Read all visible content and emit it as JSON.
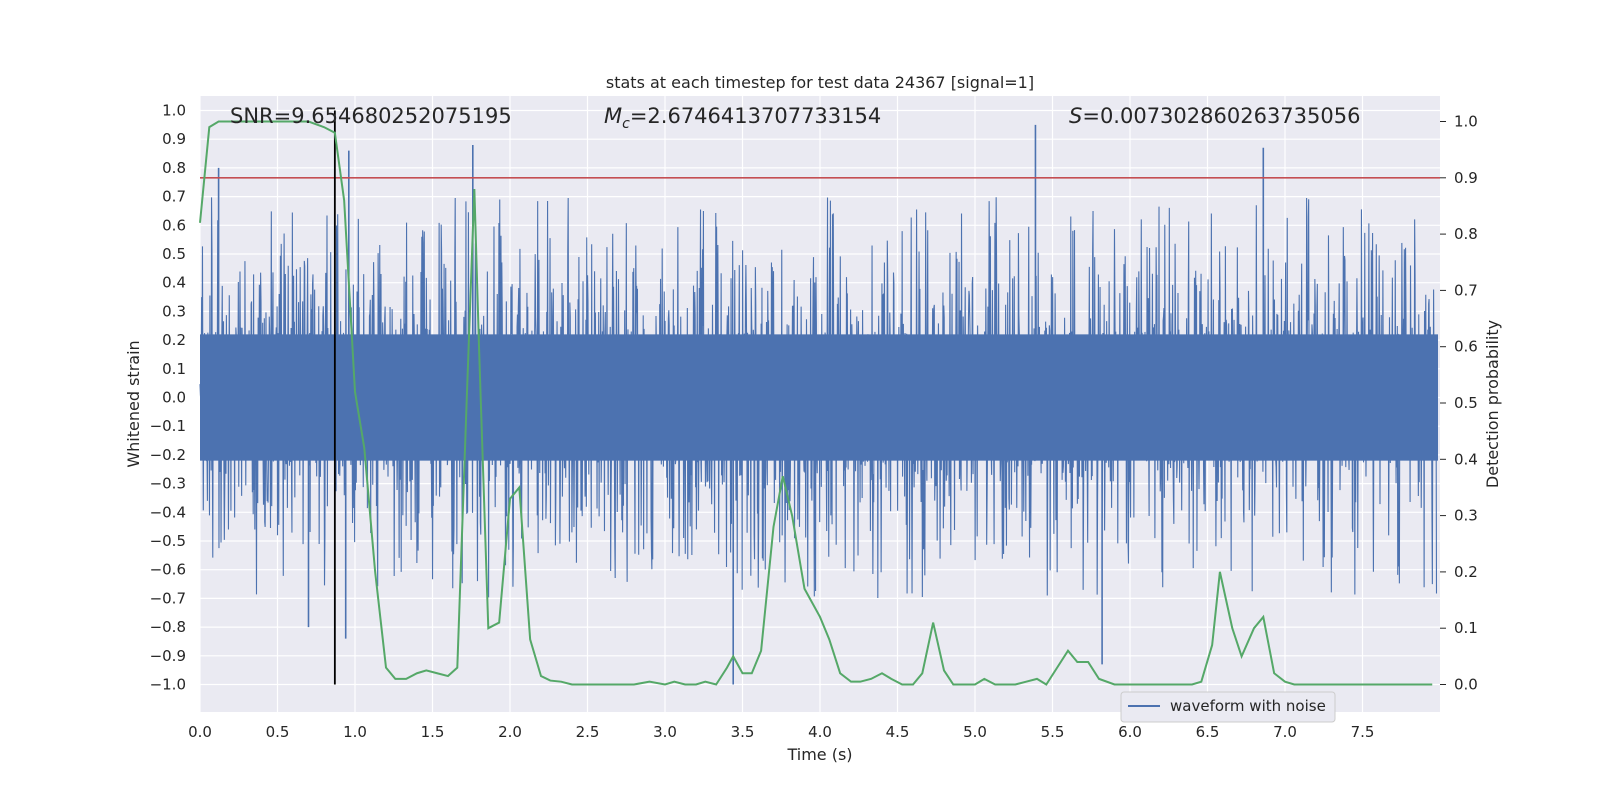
{
  "chart_data": {
    "type": "line",
    "title": "stats at each timestep for test data 24367 [signal=1]",
    "xlabel": "Time (s)",
    "ylabel": "Whitened strain",
    "ylabel_right": "Detection probability",
    "xlim": [
      0.0,
      8.0
    ],
    "ylim_left": [
      -1.1,
      1.05
    ],
    "ylim_right": [
      -0.05,
      1.05
    ],
    "x_ticks": [
      "0.0",
      "0.5",
      "1.0",
      "1.5",
      "2.0",
      "2.5",
      "3.0",
      "3.5",
      "4.0",
      "4.5",
      "5.0",
      "5.5",
      "6.0",
      "6.5",
      "7.0",
      "7.5"
    ],
    "y_left_ticks": [
      "1.0",
      "0.9",
      "0.8",
      "0.7",
      "0.6",
      "0.5",
      "0.4",
      "0.3",
      "0.2",
      "0.1",
      "0.0",
      "-0.1",
      "-0.2",
      "-0.3",
      "-0.4",
      "-0.5",
      "-0.6",
      "-0.7",
      "-0.8",
      "-0.9",
      "-1.0"
    ],
    "y_right_ticks": [
      "1.0",
      "0.9",
      "0.8",
      "0.7",
      "0.6",
      "0.5",
      "0.4",
      "0.3",
      "0.2",
      "0.1",
      "0.0"
    ],
    "annotations": {
      "snr": "SNR=9.654680252075195",
      "mc_symbol": "M",
      "mc_subscript": "c",
      "mc_value": "=2.6746413707733154",
      "s_symbol": "S",
      "s_value": "=0.007302860263735056"
    },
    "threshold": 0.9,
    "marker_time": 0.87,
    "legend_position": "lower-right",
    "grid": true,
    "series": [
      {
        "name": "waveform with noise",
        "color": "#4c72b0",
        "description_envelope_upper": 0.6,
        "description_envelope_lower": -0.6,
        "notable_peaks": [
          {
            "x": 0.12,
            "y": 0.8
          },
          {
            "x": 0.96,
            "y": 0.86
          },
          {
            "x": 1.76,
            "y": 0.88
          },
          {
            "x": 5.39,
            "y": 0.95
          },
          {
            "x": 6.86,
            "y": 0.87
          },
          {
            "x": 0.7,
            "y": -0.8
          },
          {
            "x": 0.94,
            "y": -0.84
          },
          {
            "x": 3.44,
            "y": -1.0
          },
          {
            "x": 5.82,
            "y": -0.93
          }
        ]
      },
      {
        "color": "#55a868",
        "axis": "right",
        "x": [
          0.0,
          0.06,
          0.12,
          0.2,
          0.3,
          0.5,
          0.7,
          0.8,
          0.87,
          0.93,
          1.0,
          1.06,
          1.13,
          1.2,
          1.26,
          1.33,
          1.4,
          1.46,
          1.53,
          1.6,
          1.66,
          1.72,
          1.77,
          1.8,
          1.86,
          1.93,
          2.0,
          2.06,
          2.13,
          2.2,
          2.26,
          2.33,
          2.4,
          2.5,
          2.6,
          2.7,
          2.8,
          2.9,
          3.0,
          3.06,
          3.13,
          3.2,
          3.26,
          3.33,
          3.4,
          3.44,
          3.5,
          3.56,
          3.62,
          3.7,
          3.76,
          3.82,
          3.9,
          4.0,
          4.06,
          4.13,
          4.2,
          4.26,
          4.33,
          4.4,
          4.46,
          4.53,
          4.6,
          4.66,
          4.73,
          4.8,
          4.86,
          4.93,
          5.0,
          5.06,
          5.13,
          5.2,
          5.26,
          5.33,
          5.4,
          5.46,
          5.53,
          5.6,
          5.66,
          5.73,
          5.8,
          5.9,
          6.0,
          6.1,
          6.2,
          6.3,
          6.4,
          6.46,
          6.53,
          6.58,
          6.66,
          6.72,
          6.8,
          6.86,
          6.93,
          7.0,
          7.06,
          7.13,
          7.2,
          7.4,
          7.6,
          7.8,
          7.95
        ],
        "y": [
          0.82,
          0.99,
          1.0,
          1.0,
          1.0,
          1.0,
          1.0,
          0.99,
          0.98,
          0.86,
          0.52,
          0.42,
          0.2,
          0.03,
          0.01,
          0.01,
          0.02,
          0.025,
          0.02,
          0.015,
          0.03,
          0.5,
          0.88,
          0.6,
          0.1,
          0.11,
          0.33,
          0.35,
          0.08,
          0.015,
          0.007,
          0.005,
          0.0,
          0.0,
          0.0,
          0.0,
          0.0,
          0.005,
          0.0,
          0.005,
          0.0,
          0.0,
          0.005,
          0.0,
          0.03,
          0.05,
          0.02,
          0.02,
          0.06,
          0.28,
          0.37,
          0.3,
          0.17,
          0.12,
          0.08,
          0.02,
          0.005,
          0.005,
          0.01,
          0.02,
          0.01,
          0.0,
          0.0,
          0.02,
          0.11,
          0.025,
          0.0,
          0.0,
          0.0,
          0.01,
          0.0,
          0.0,
          0.0,
          0.005,
          0.01,
          0.0,
          0.03,
          0.06,
          0.04,
          0.04,
          0.01,
          0.0,
          0.0,
          0.0,
          0.0,
          0.0,
          0.0,
          0.005,
          0.07,
          0.2,
          0.1,
          0.05,
          0.1,
          0.12,
          0.02,
          0.005,
          0.0,
          0.0,
          0.0,
          0.0,
          0.0,
          0.0,
          0.0
        ]
      }
    ]
  }
}
